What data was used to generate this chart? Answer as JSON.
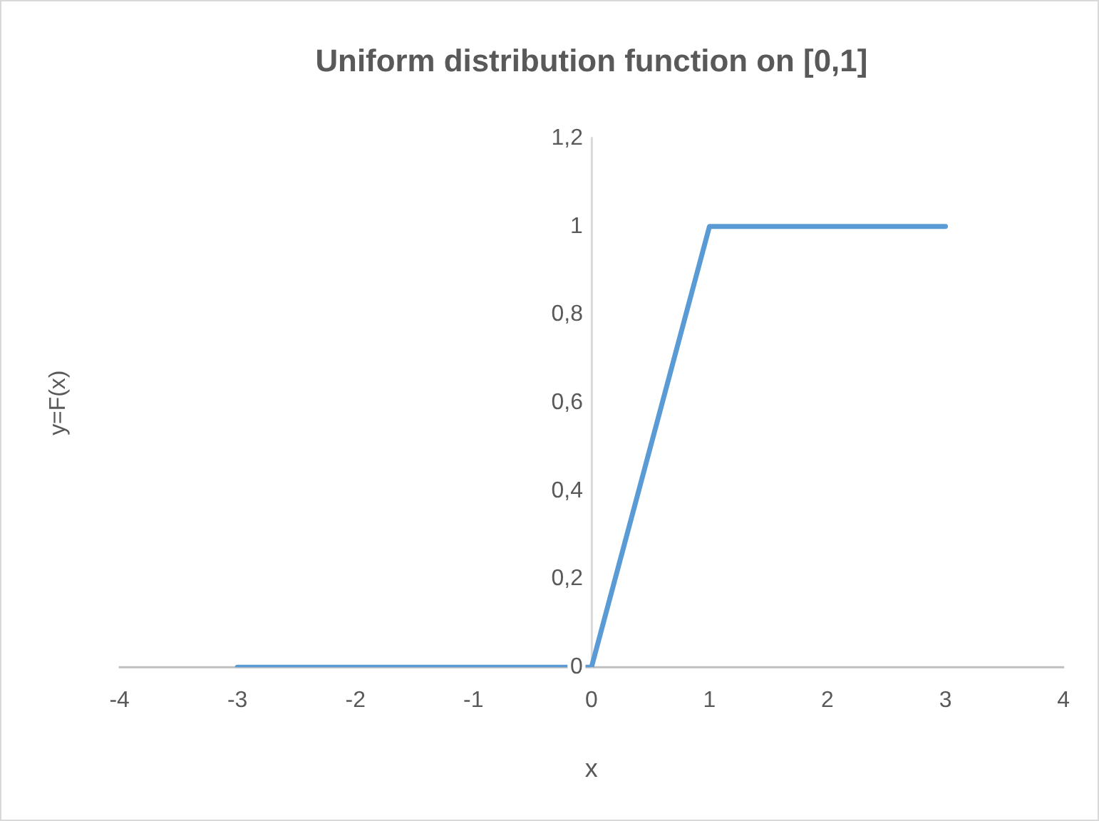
{
  "chart_data": {
    "type": "line",
    "title": "Uniform distribution function on [0,1]",
    "xlabel": "x",
    "ylabel": "y=F(x)",
    "x": [
      -3,
      0,
      1,
      3
    ],
    "series": [
      {
        "color": "#5b9bd5",
        "values": [
          0,
          0,
          1,
          1
        ]
      }
    ],
    "xlim": [
      -4,
      4
    ],
    "xticks": [
      -4,
      -3,
      -2,
      -1,
      0,
      1,
      2,
      3,
      4
    ],
    "ylim": [
      0,
      1.2
    ],
    "yticks": [
      {
        "value": 0,
        "label": "0"
      },
      {
        "value": 0.2,
        "label": "0,2"
      },
      {
        "value": 0.4,
        "label": "0,4"
      },
      {
        "value": 0.6,
        "label": "0,6"
      },
      {
        "value": 0.8,
        "label": "0,8"
      },
      {
        "value": 1,
        "label": "1"
      },
      {
        "value": 1.2,
        "label": "1,2"
      }
    ],
    "grid": false,
    "legend": false,
    "marker": "none",
    "line_style": "solid"
  }
}
